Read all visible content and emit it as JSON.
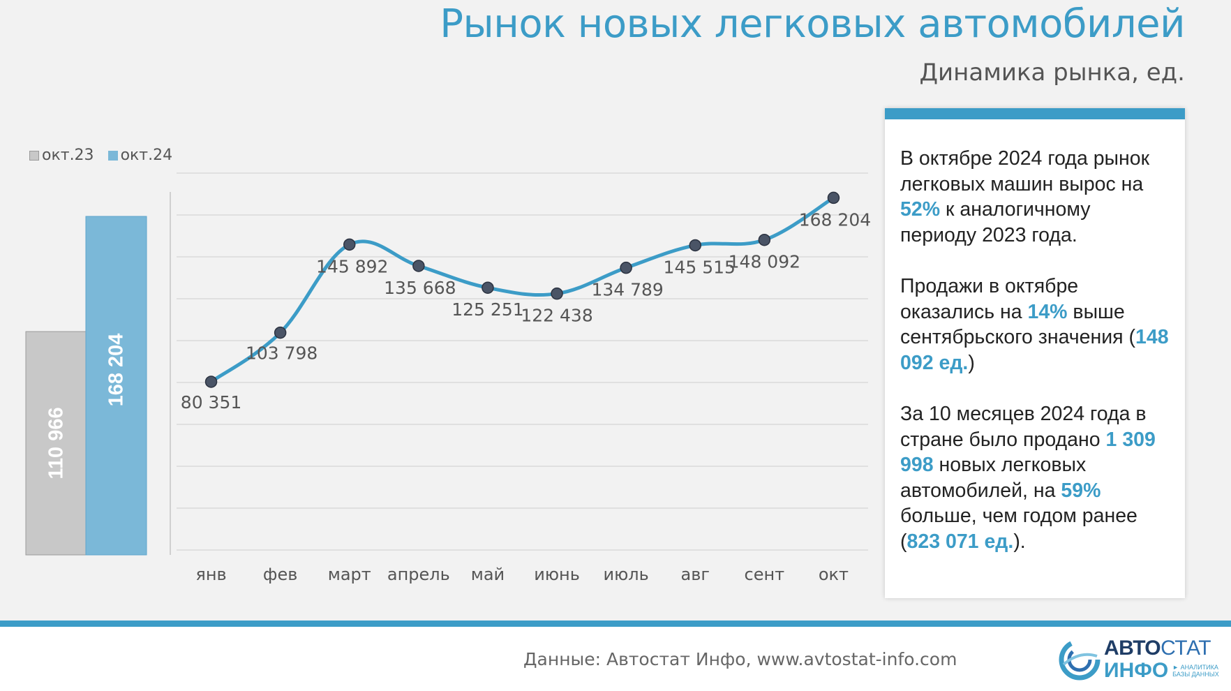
{
  "title": "Рынок новых легковых автомобилей",
  "subtitle": "Динамика рынка, ед.",
  "legend": [
    {
      "label": "окт.23",
      "color": "#c8c8c8"
    },
    {
      "label": "окт.24",
      "color": "#7bb8d8"
    }
  ],
  "colors": {
    "accent": "#3c9cc7",
    "bar_prev": "#c8c8c8",
    "bar_curr": "#7bb8d8"
  },
  "chart_data": [
    {
      "type": "bar",
      "categories": [
        "окт.23",
        "окт.24"
      ],
      "values": [
        110966,
        168204
      ],
      "value_labels": [
        "110 966",
        "168 204"
      ]
    },
    {
      "type": "line",
      "categories": [
        "янв",
        "фев",
        "март",
        "апрель",
        "май",
        "июнь",
        "июль",
        "авг",
        "сент",
        "окт"
      ],
      "values": [
        80351,
        103798,
        145892,
        135668,
        125251,
        122438,
        134789,
        145515,
        148092,
        168204
      ],
      "value_labels": [
        "80 351",
        "103 798",
        "145 892",
        "135 668",
        "125 251",
        "122 438",
        "134 789",
        "145 515",
        "148 092",
        "168 204"
      ],
      "ylim": [
        0,
        180000
      ],
      "grid": true
    }
  ],
  "info": {
    "p1": [
      "В октябре 2024 года рынок легковых машин вырос на ",
      "52%",
      " к аналогичному периоду 2023 года."
    ],
    "p2": [
      "Продажи в октябре оказались на ",
      "14%",
      " выше сентябрьского значения (",
      "148 092 ед.",
      ")"
    ],
    "p3": [
      "За 10 месяцев 2024 года в стране было продано ",
      "1 309 998",
      " новых легковых автомобилей, на ",
      "59%",
      " больше, чем годом ранее (",
      "823 071 ед.",
      ")."
    ]
  },
  "footer": {
    "source": "Данные: Автостат Инфо, www.avtostat-info.com",
    "logo_line1_bold": "АВТО",
    "logo_line1_rest": "СТАТ",
    "logo_line2": "ИНФО",
    "logo_tag_1": "► АНАЛИТИКА",
    "logo_tag_2": "БАЗЫ ДАННЫХ"
  }
}
